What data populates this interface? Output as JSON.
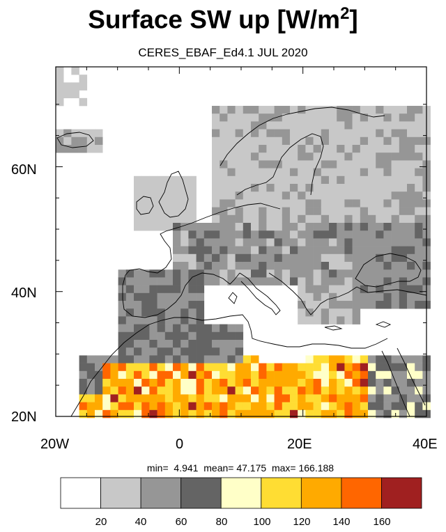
{
  "title": "Surface SW up [W/m",
  "title_sup": "2",
  "title_end": "]",
  "subtitle": "CERES_EBAF_Ed4.1 JUL 2020",
  "stats": {
    "min_label": "min=",
    "min": "4.941",
    "mean_label": "mean=",
    "mean": "47.175",
    "max_label": "max=",
    "max": "166.188"
  },
  "map": {
    "lon_range": [
      -20,
      40
    ],
    "lat_range": [
      20,
      76
    ],
    "lat_ticks": [
      {
        "value": 20,
        "label": "20N"
      },
      {
        "value": 40,
        "label": "40N"
      },
      {
        "value": 60,
        "label": "60N"
      }
    ],
    "lon_ticks": [
      {
        "value": -20,
        "label": "20W"
      },
      {
        "value": 0,
        "label": "0"
      },
      {
        "value": 20,
        "label": "20E"
      },
      {
        "value": 40,
        "label": "40E"
      }
    ]
  },
  "colorbar": {
    "colors": [
      "#ffffff",
      "#c8c8c8",
      "#969696",
      "#646464",
      "#ffffc8",
      "#ffdd33",
      "#ffaa00",
      "#ff6600",
      "#a02020"
    ],
    "labels": [
      "20",
      "40",
      "60",
      "80",
      "100",
      "120",
      "140",
      "160"
    ]
  }
}
